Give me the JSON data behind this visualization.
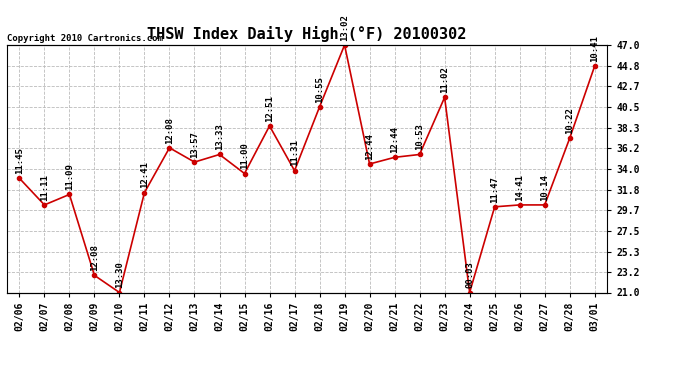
{
  "title": "THSW Index Daily High (°F) 20100302",
  "copyright": "Copyright 2010 Cartronics.com",
  "dates": [
    "02/06",
    "02/07",
    "02/08",
    "02/09",
    "02/10",
    "02/11",
    "02/12",
    "02/13",
    "02/14",
    "02/15",
    "02/16",
    "02/17",
    "02/18",
    "02/19",
    "02/20",
    "02/21",
    "02/22",
    "02/23",
    "02/24",
    "02/25",
    "02/26",
    "02/27",
    "02/28",
    "03/01"
  ],
  "values": [
    33.0,
    30.2,
    31.3,
    22.8,
    21.0,
    31.5,
    36.2,
    34.7,
    35.5,
    33.5,
    38.5,
    33.8,
    40.5,
    47.0,
    34.5,
    35.2,
    35.5,
    41.5,
    21.0,
    30.0,
    30.2,
    30.2,
    37.2,
    44.8
  ],
  "times": [
    "11:45",
    "11:11",
    "11:09",
    "12:08",
    "13:30",
    "12:41",
    "12:08",
    "13:57",
    "13:33",
    "11:00",
    "12:51",
    "11:31",
    "10:55",
    "13:02",
    "12:44",
    "12:44",
    "10:53",
    "11:02",
    "00:03",
    "11:47",
    "14:41",
    "10:14",
    "10:22",
    "10:41"
  ],
  "line_color": "#cc0000",
  "marker_color": "#cc0000",
  "bg_color": "#ffffff",
  "grid_color": "#bbbbbb",
  "ylim_min": 21.0,
  "ylim_max": 47.0,
  "yticks": [
    21.0,
    23.2,
    25.3,
    27.5,
    29.7,
    31.8,
    34.0,
    36.2,
    38.3,
    40.5,
    42.7,
    44.8,
    47.0
  ],
  "title_fontsize": 11,
  "label_fontsize": 6.5,
  "tick_fontsize": 7,
  "copyright_fontsize": 6.5
}
